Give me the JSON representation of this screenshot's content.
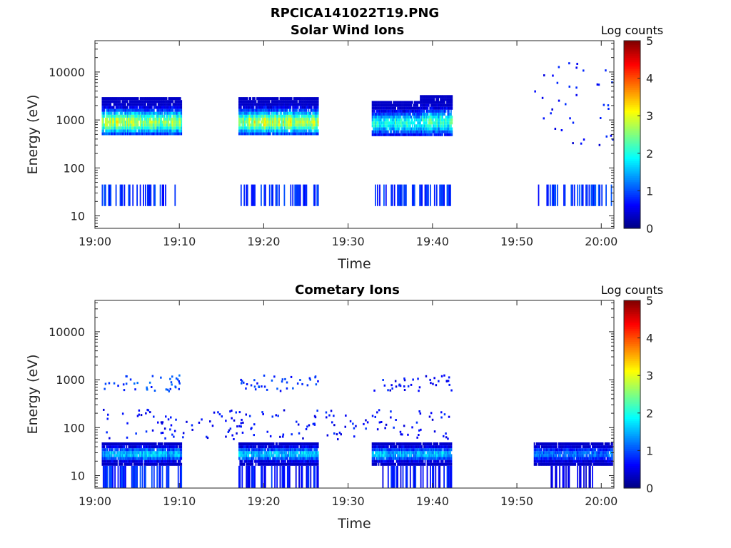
{
  "figure": {
    "title": "RPCICA141022T19.PNG"
  },
  "chart_data": [
    {
      "type": "heatmap",
      "title": "Solar Wind Ions",
      "xlabel": "Time",
      "ylabel": "Energy (eV)",
      "x_tick_labels": [
        "19:00",
        "19:10",
        "19:20",
        "19:30",
        "19:40",
        "19:50",
        "20:00"
      ],
      "x_tick_minutes": [
        0,
        10,
        20,
        30,
        40,
        50,
        60
      ],
      "xlim_minutes": [
        0,
        61.5
      ],
      "y_scale": "log",
      "ylim": [
        5.5,
        45000
      ],
      "y_tick_labels": [
        "10",
        "100",
        "1000",
        "10000"
      ],
      "y_tick_values": [
        10,
        100,
        1000,
        10000
      ],
      "colorbar": {
        "label": "Log counts",
        "range": [
          0,
          5
        ],
        "tick_labels": [
          "0",
          "1",
          "2",
          "3",
          "4",
          "5"
        ],
        "colormap": "jet"
      },
      "bands": [
        {
          "t_start": 0.8,
          "t_end": 10.3,
          "e_low": 480,
          "e_high": 2900,
          "peak": 2.9,
          "core_energy": 900
        },
        {
          "t_start": 17.0,
          "t_end": 26.5,
          "e_low": 480,
          "e_high": 2800,
          "peak": 3.0,
          "core_energy": 900
        },
        {
          "t_start": 32.8,
          "t_end": 38.5,
          "e_low": 460,
          "e_high": 2400,
          "peak": 2.2,
          "core_energy": 850
        },
        {
          "t_start": 38.5,
          "t_end": 42.3,
          "e_low": 460,
          "e_high": 2900,
          "peak": 2.3,
          "core_energy": 900
        }
      ],
      "low_energy_stripes": [
        {
          "t_start": 0.8,
          "t_end": 10.3,
          "e_low": 16,
          "e_high": 45,
          "level": 0.6
        },
        {
          "t_start": 17.0,
          "t_end": 26.5,
          "e_low": 16,
          "e_high": 45,
          "level": 0.6
        },
        {
          "t_start": 32.8,
          "t_end": 42.3,
          "e_low": 16,
          "e_high": 45,
          "level": 0.6
        },
        {
          "t_start": 52.5,
          "t_end": 61.3,
          "e_low": 16,
          "e_high": 45,
          "level": 0.6
        }
      ],
      "sparse_points": [
        {
          "t_start": 52.0,
          "t_end": 61.3,
          "e_low": 250,
          "e_high": 20000,
          "level": 0.4
        }
      ]
    },
    {
      "type": "heatmap",
      "title": "Cometary Ions",
      "xlabel": "Time",
      "ylabel": "Energy (eV)",
      "x_tick_labels": [
        "19:00",
        "19:10",
        "19:20",
        "19:30",
        "19:40",
        "19:50",
        "20:00"
      ],
      "x_tick_minutes": [
        0,
        10,
        20,
        30,
        40,
        50,
        60
      ],
      "xlim_minutes": [
        0,
        61.5
      ],
      "y_scale": "log",
      "ylim": [
        5.5,
        45000
      ],
      "y_tick_labels": [
        "10",
        "100",
        "1000",
        "10000"
      ],
      "y_tick_values": [
        10,
        100,
        1000,
        10000
      ],
      "colorbar": {
        "label": "Log counts",
        "range": [
          0,
          5
        ],
        "tick_labels": [
          "0",
          "1",
          "2",
          "3",
          "4",
          "5"
        ],
        "colormap": "jet"
      },
      "bands": [
        {
          "t_start": 0.8,
          "t_end": 10.3,
          "e_low": 16,
          "e_high": 45,
          "peak": 1.75,
          "core_energy": 28
        },
        {
          "t_start": 17.0,
          "t_end": 26.5,
          "e_low": 16,
          "e_high": 45,
          "peak": 1.75,
          "core_energy": 28
        },
        {
          "t_start": 32.8,
          "t_end": 42.3,
          "e_low": 16,
          "e_high": 45,
          "peak": 1.7,
          "core_energy": 28
        },
        {
          "t_start": 52.0,
          "t_end": 61.3,
          "e_low": 16,
          "e_high": 45,
          "peak": 1.3,
          "core_energy": 28
        }
      ],
      "low_energy_stripes": [
        {
          "t_start": 0.8,
          "t_end": 10.3,
          "e_low": 5.5,
          "e_high": 16,
          "level": 0.55
        },
        {
          "t_start": 17.0,
          "t_end": 26.5,
          "e_low": 5.5,
          "e_high": 16,
          "level": 0.45
        },
        {
          "t_start": 32.8,
          "t_end": 42.3,
          "e_low": 5.5,
          "e_high": 16,
          "level": 0.45
        },
        {
          "t_start": 53.5,
          "t_end": 59.0,
          "e_low": 5.5,
          "e_high": 16,
          "level": 0.3
        }
      ],
      "sparse_points": [
        {
          "t_start": 0.8,
          "t_end": 10.3,
          "e_low": 600,
          "e_high": 1300,
          "level": 0.7
        },
        {
          "t_start": 17.0,
          "t_end": 26.5,
          "e_low": 600,
          "e_high": 1300,
          "level": 0.6
        },
        {
          "t_start": 32.8,
          "t_end": 42.3,
          "e_low": 600,
          "e_high": 1300,
          "level": 0.4
        },
        {
          "t_start": 0.8,
          "t_end": 42.3,
          "e_low": 60,
          "e_high": 250,
          "level": 0.4
        }
      ]
    }
  ]
}
